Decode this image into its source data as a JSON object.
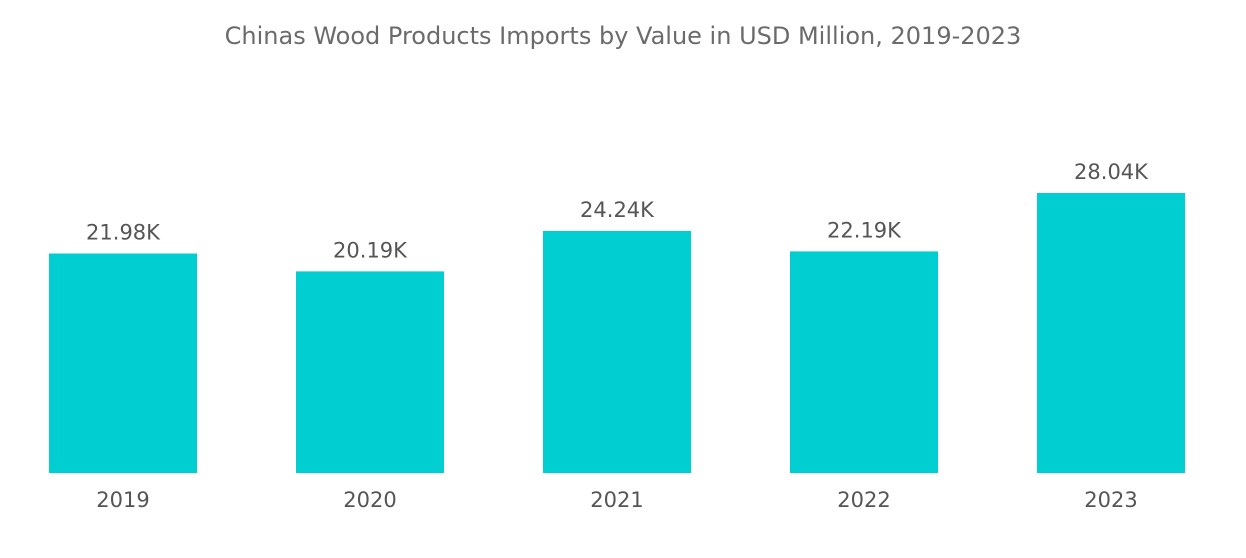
{
  "chart_data": {
    "type": "bar",
    "title": "Chinas Wood Products Imports by Value in USD Million, 2019-2023",
    "categories": [
      "2019",
      "2020",
      "2021",
      "2022",
      "2023"
    ],
    "values": [
      21.98,
      20.19,
      24.24,
      22.19,
      28.04
    ],
    "data_labels": [
      "21.98K",
      "20.19K",
      "24.24K",
      "22.19K",
      "28.04K"
    ],
    "unit": "K",
    "xlabel": "",
    "ylabel": "",
    "ylim": [
      0,
      28.04
    ],
    "grid": false,
    "bar_color": "#00CED1"
  }
}
